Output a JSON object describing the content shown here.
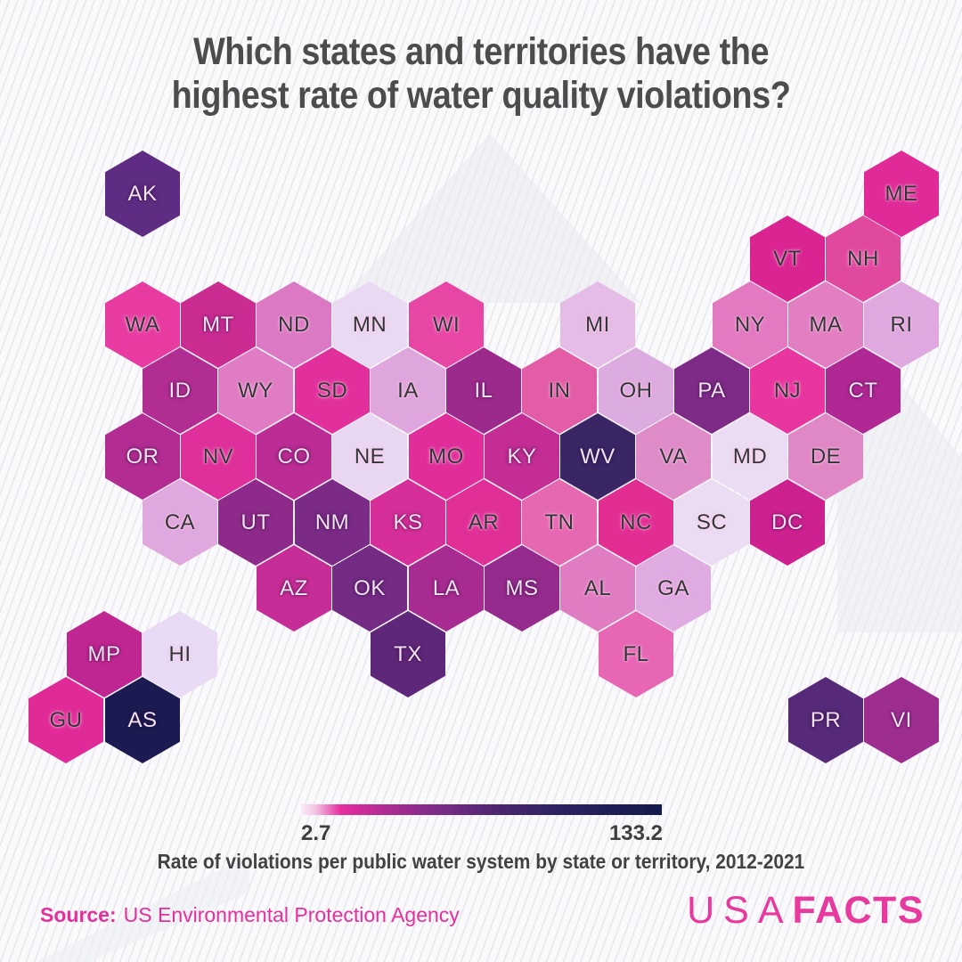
{
  "title": {
    "line1": "Which states and territories have the",
    "line2": "highest rate of water quality violations?"
  },
  "source": {
    "label": "Source:",
    "text": "US Environmental Protection Agency"
  },
  "logo": {
    "part1": "USA",
    "part2": "FACTS",
    "color": "#e83a9e"
  },
  "chart_data": {
    "type": "heatmap",
    "variant": "hex-tile-cartogram",
    "title": "Which states and territories have the highest rate of water quality violations?",
    "caption": "Rate of violations per public water system by state or territory, 2012-2021",
    "colorbar": {
      "min": 2.7,
      "max": 133.2,
      "min_label": "2.7",
      "max_label": "133.2",
      "stops": [
        {
          "color": "#f8ecf7",
          "pos": 0
        },
        {
          "color": "#f3c3e3",
          "pos": 4
        },
        {
          "color": "#e62da0",
          "pos": 11
        },
        {
          "color": "#b12b93",
          "pos": 23
        },
        {
          "color": "#7c2b87",
          "pos": 38
        },
        {
          "color": "#4b2670",
          "pos": 55
        },
        {
          "color": "#2b2260",
          "pos": 72
        },
        {
          "color": "#131a4c",
          "pos": 100
        }
      ]
    },
    "tiles": [
      {
        "abbr": "AK",
        "row": 0,
        "col": 0,
        "color": "#5e2c83",
        "text_style": "light"
      },
      {
        "abbr": "ME",
        "row": 0,
        "col": 10,
        "color": "#e02a97",
        "text_style": "dark"
      },
      {
        "abbr": "VT",
        "row": 1,
        "col": 8,
        "color": "#d92491",
        "text_style": "dark"
      },
      {
        "abbr": "NH",
        "row": 1,
        "col": 9,
        "color": "#e1499e",
        "text_style": "dark"
      },
      {
        "abbr": "WA",
        "row": 2,
        "col": 0,
        "color": "#e73ba1",
        "text_style": "dark"
      },
      {
        "abbr": "MT",
        "row": 2,
        "col": 1,
        "color": "#cb2c92",
        "text_style": "light"
      },
      {
        "abbr": "ND",
        "row": 2,
        "col": 2,
        "color": "#db79c5",
        "text_style": "dark"
      },
      {
        "abbr": "MN",
        "row": 2,
        "col": 3,
        "color": "#ead9f2",
        "text_style": "dark"
      },
      {
        "abbr": "WI",
        "row": 2,
        "col": 4,
        "color": "#e746a4",
        "text_style": "dark"
      },
      {
        "abbr": "MI",
        "row": 2,
        "col": 6,
        "color": "#e4bce5",
        "text_style": "dark"
      },
      {
        "abbr": "NY",
        "row": 2,
        "col": 8,
        "color": "#e279c1",
        "text_style": "dark"
      },
      {
        "abbr": "MA",
        "row": 2,
        "col": 9,
        "color": "#e27fc3",
        "text_style": "dark"
      },
      {
        "abbr": "RI",
        "row": 2,
        "col": 10,
        "color": "#dfa9e0",
        "text_style": "dark"
      },
      {
        "abbr": "ID",
        "row": 3,
        "col": 0,
        "color": "#b22d91",
        "text_style": "light"
      },
      {
        "abbr": "WY",
        "row": 3,
        "col": 1,
        "color": "#df7cc4",
        "text_style": "dark"
      },
      {
        "abbr": "SD",
        "row": 3,
        "col": 2,
        "color": "#e1309c",
        "text_style": "dark"
      },
      {
        "abbr": "IA",
        "row": 3,
        "col": 3,
        "color": "#dfa6dd",
        "text_style": "dark"
      },
      {
        "abbr": "IL",
        "row": 3,
        "col": 4,
        "color": "#9c2a8c",
        "text_style": "light"
      },
      {
        "abbr": "IN",
        "row": 3,
        "col": 5,
        "color": "#e25ca6",
        "text_style": "dark"
      },
      {
        "abbr": "OH",
        "row": 3,
        "col": 6,
        "color": "#dcabdf",
        "text_style": "dark"
      },
      {
        "abbr": "PA",
        "row": 3,
        "col": 7,
        "color": "#7e2b88",
        "text_style": "light"
      },
      {
        "abbr": "NJ",
        "row": 3,
        "col": 8,
        "color": "#e8359f",
        "text_style": "dark"
      },
      {
        "abbr": "CT",
        "row": 3,
        "col": 9,
        "color": "#b02894",
        "text_style": "light"
      },
      {
        "abbr": "OR",
        "row": 4,
        "col": 0,
        "color": "#b22c92",
        "text_style": "light"
      },
      {
        "abbr": "NV",
        "row": 4,
        "col": 1,
        "color": "#df2f9a",
        "text_style": "dark"
      },
      {
        "abbr": "CO",
        "row": 4,
        "col": 2,
        "color": "#bb2c94",
        "text_style": "light"
      },
      {
        "abbr": "NE",
        "row": 4,
        "col": 3,
        "color": "#e9d7f2",
        "text_style": "dark"
      },
      {
        "abbr": "MO",
        "row": 4,
        "col": 4,
        "color": "#e02d9a",
        "text_style": "dark"
      },
      {
        "abbr": "KY",
        "row": 4,
        "col": 5,
        "color": "#c32d94",
        "text_style": "light"
      },
      {
        "abbr": "WV",
        "row": 4,
        "col": 6,
        "color": "#3a2565",
        "text_style": "light"
      },
      {
        "abbr": "VA",
        "row": 4,
        "col": 7,
        "color": "#de8bc8",
        "text_style": "dark"
      },
      {
        "abbr": "MD",
        "row": 4,
        "col": 8,
        "color": "#ecdcf3",
        "text_style": "dark"
      },
      {
        "abbr": "DE",
        "row": 4,
        "col": 9,
        "color": "#e087c5",
        "text_style": "dark"
      },
      {
        "abbr": "CA",
        "row": 5,
        "col": 0,
        "color": "#dfa8de",
        "text_style": "dark"
      },
      {
        "abbr": "UT",
        "row": 5,
        "col": 1,
        "color": "#8e2a8a",
        "text_style": "light"
      },
      {
        "abbr": "NM",
        "row": 5,
        "col": 2,
        "color": "#7b2b86",
        "text_style": "light"
      },
      {
        "abbr": "KS",
        "row": 5,
        "col": 3,
        "color": "#d62f99",
        "text_style": "light"
      },
      {
        "abbr": "AR",
        "row": 5,
        "col": 4,
        "color": "#e03098",
        "text_style": "dark"
      },
      {
        "abbr": "TN",
        "row": 5,
        "col": 5,
        "color": "#e668b0",
        "text_style": "dark"
      },
      {
        "abbr": "NC",
        "row": 5,
        "col": 6,
        "color": "#e22d93",
        "text_style": "dark"
      },
      {
        "abbr": "SC",
        "row": 5,
        "col": 7,
        "color": "#ecdcf3",
        "text_style": "dark"
      },
      {
        "abbr": "DC",
        "row": 5,
        "col": 8,
        "color": "#ce2190",
        "text_style": "light"
      },
      {
        "abbr": "AZ",
        "row": 6,
        "col": 2,
        "color": "#c62d96",
        "text_style": "light"
      },
      {
        "abbr": "OK",
        "row": 6,
        "col": 3,
        "color": "#732b84",
        "text_style": "light"
      },
      {
        "abbr": "LA",
        "row": 6,
        "col": 4,
        "color": "#a82b91",
        "text_style": "light"
      },
      {
        "abbr": "MS",
        "row": 6,
        "col": 5,
        "color": "#952b8d",
        "text_style": "light"
      },
      {
        "abbr": "AL",
        "row": 6,
        "col": 6,
        "color": "#e07cc2",
        "text_style": "dark"
      },
      {
        "abbr": "GA",
        "row": 6,
        "col": 7,
        "color": "#dfabe1",
        "text_style": "dark"
      },
      {
        "abbr": "MP",
        "row": 7,
        "col": -1,
        "color": "#c02691",
        "text_style": "light"
      },
      {
        "abbr": "HI",
        "row": 7,
        "col": 0,
        "color": "#e9daf5",
        "text_style": "dark"
      },
      {
        "abbr": "TX",
        "row": 7,
        "col": 3,
        "color": "#5f2779",
        "text_style": "light"
      },
      {
        "abbr": "FL",
        "row": 7,
        "col": 6,
        "color": "#e767b4",
        "text_style": "dark"
      },
      {
        "abbr": "GU",
        "row": 8,
        "col": -1,
        "color": "#e02a97",
        "text_style": "dark"
      },
      {
        "abbr": "AS",
        "row": 8,
        "col": 0,
        "color": "#1b1b51",
        "text_style": "light"
      },
      {
        "abbr": "PR",
        "row": 8,
        "col": 9,
        "color": "#562a78",
        "text_style": "light"
      },
      {
        "abbr": "VI",
        "row": 8,
        "col": 10,
        "color": "#9e2d90",
        "text_style": "light"
      }
    ]
  }
}
